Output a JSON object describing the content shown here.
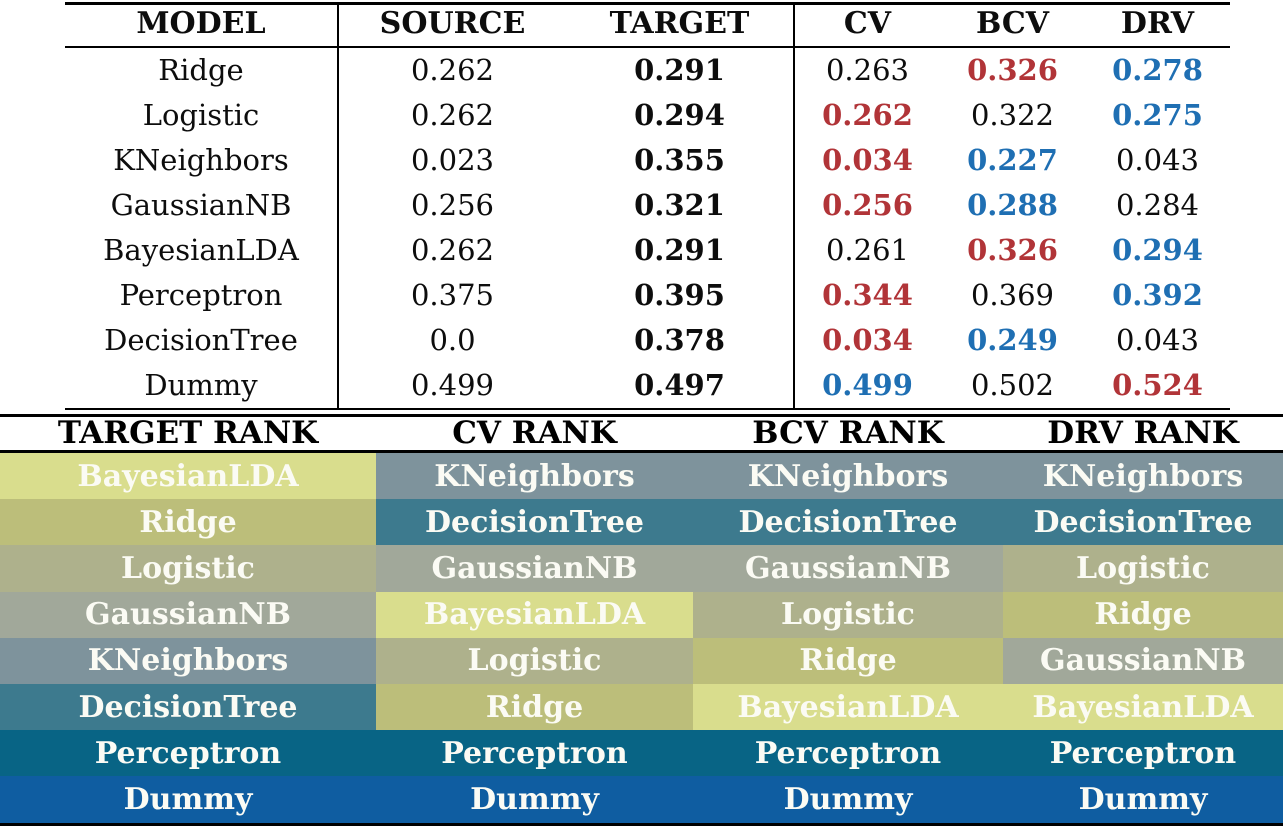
{
  "colors": {
    "text_black": "#0d0d0d",
    "value_red": "#b13438",
    "value_blue": "#1f6fb3",
    "rank_text_white": "#fbfbf4",
    "model_colors": {
      "BayesianLDA": "#d9dd8d",
      "Ridge": "#bcbe7a",
      "Logistic": "#aeb18c",
      "GaussianNB": "#a1a89a",
      "KNeighbors": "#7e939c",
      "DecisionTree": "#3d7a8e",
      "Perceptron": "#086485",
      "Dummy": "#0f5da1"
    }
  },
  "metrics_table": {
    "headers": [
      "MODEL",
      "SOURCE",
      "TARGET",
      "CV",
      "BCV",
      "DRV"
    ],
    "rows": [
      {
        "model": "Ridge",
        "source": "0.262",
        "target": "0.291",
        "cv": {
          "v": "0.263",
          "style": "plain"
        },
        "bcv": {
          "v": "0.326",
          "style": "red"
        },
        "drv": {
          "v": "0.278",
          "style": "blue"
        }
      },
      {
        "model": "Logistic",
        "source": "0.262",
        "target": "0.294",
        "cv": {
          "v": "0.262",
          "style": "red"
        },
        "bcv": {
          "v": "0.322",
          "style": "plain"
        },
        "drv": {
          "v": "0.275",
          "style": "blue"
        }
      },
      {
        "model": "KNeighbors",
        "source": "0.023",
        "target": "0.355",
        "cv": {
          "v": "0.034",
          "style": "red"
        },
        "bcv": {
          "v": "0.227",
          "style": "blue"
        },
        "drv": {
          "v": "0.043",
          "style": "plain"
        }
      },
      {
        "model": "GaussianNB",
        "source": "0.256",
        "target": "0.321",
        "cv": {
          "v": "0.256",
          "style": "red"
        },
        "bcv": {
          "v": "0.288",
          "style": "blue"
        },
        "drv": {
          "v": "0.284",
          "style": "plain"
        }
      },
      {
        "model": "BayesianLDA",
        "source": "0.262",
        "target": "0.291",
        "cv": {
          "v": "0.261",
          "style": "plain"
        },
        "bcv": {
          "v": "0.326",
          "style": "red"
        },
        "drv": {
          "v": "0.294",
          "style": "blue"
        }
      },
      {
        "model": "Perceptron",
        "source": "0.375",
        "target": "0.395",
        "cv": {
          "v": "0.344",
          "style": "red"
        },
        "bcv": {
          "v": "0.369",
          "style": "plain"
        },
        "drv": {
          "v": "0.392",
          "style": "blue"
        }
      },
      {
        "model": "DecisionTree",
        "source": "0.0",
        "target": "0.378",
        "cv": {
          "v": "0.034",
          "style": "red"
        },
        "bcv": {
          "v": "0.249",
          "style": "blue"
        },
        "drv": {
          "v": "0.043",
          "style": "plain"
        }
      },
      {
        "model": "Dummy",
        "source": "0.499",
        "target": "0.497",
        "cv": {
          "v": "0.499",
          "style": "blue"
        },
        "bcv": {
          "v": "0.502",
          "style": "plain"
        },
        "drv": {
          "v": "0.524",
          "style": "red"
        }
      }
    ]
  },
  "rank_table": {
    "columns": [
      {
        "header": "TARGET RANK",
        "cells": [
          "BayesianLDA",
          "Ridge",
          "Logistic",
          "GaussianNB",
          "KNeighbors",
          "DecisionTree",
          "Perceptron",
          "Dummy"
        ]
      },
      {
        "header": "CV RANK",
        "cells": [
          "KNeighbors",
          "DecisionTree",
          "GaussianNB",
          "BayesianLDA",
          "Logistic",
          "Ridge",
          "Perceptron",
          "Dummy"
        ]
      },
      {
        "header": "BCV RANK",
        "cells": [
          "KNeighbors",
          "DecisionTree",
          "GaussianNB",
          "Logistic",
          "Ridge",
          "BayesianLDA",
          "Perceptron",
          "Dummy"
        ]
      },
      {
        "header": "DRV RANK",
        "cells": [
          "KNeighbors",
          "DecisionTree",
          "Logistic",
          "Ridge",
          "GaussianNB",
          "BayesianLDA",
          "Perceptron",
          "Dummy"
        ]
      }
    ]
  }
}
